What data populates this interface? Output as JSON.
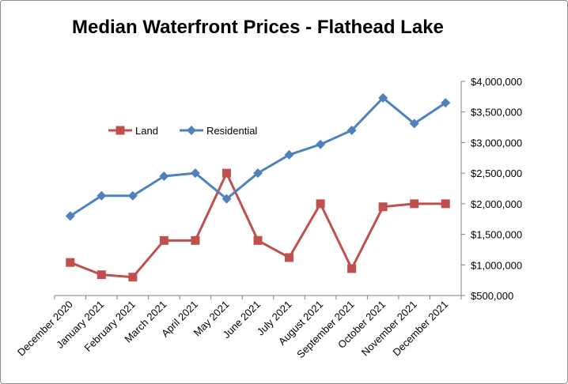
{
  "chart_data": {
    "type": "line",
    "title": "Median Waterfront Prices - Flathead Lake",
    "xlabel": "",
    "ylabel": "",
    "categories": [
      "December 2020",
      "January 2021",
      "February 2021",
      "March 2021",
      "April 2021",
      "May 2021",
      "June 2021",
      "July 2021",
      "August 2021",
      "September 2021",
      "October 2021",
      "November 2021",
      "December 2021"
    ],
    "series": [
      {
        "name": "Land",
        "color": "#c0504d",
        "marker": "square",
        "values": [
          1040000,
          840000,
          800000,
          1400000,
          1400000,
          2500000,
          1400000,
          1120000,
          2000000,
          940000,
          1950000,
          2000000,
          2000000
        ]
      },
      {
        "name": "Residential",
        "color": "#4f81bd",
        "marker": "diamond",
        "values": [
          1800000,
          2130000,
          2130000,
          2450000,
          2500000,
          2080000,
          2500000,
          2800000,
          2970000,
          3200000,
          3730000,
          3310000,
          3650000
        ]
      }
    ],
    "ylim": [
      500000,
      4000000
    ],
    "yticks": [
      4000000,
      3500000,
      3000000,
      2500000,
      2000000,
      1500000,
      1000000,
      500000
    ],
    "ytick_labels": [
      "$4,000,000",
      "$3,500,000",
      "$3,000,000",
      "$2,500,000",
      "$2,000,000",
      "$1,500,000",
      "$1,000,000",
      "$500,000"
    ],
    "y_axis_side": "right",
    "grid": false,
    "legend_position": "top-left"
  }
}
